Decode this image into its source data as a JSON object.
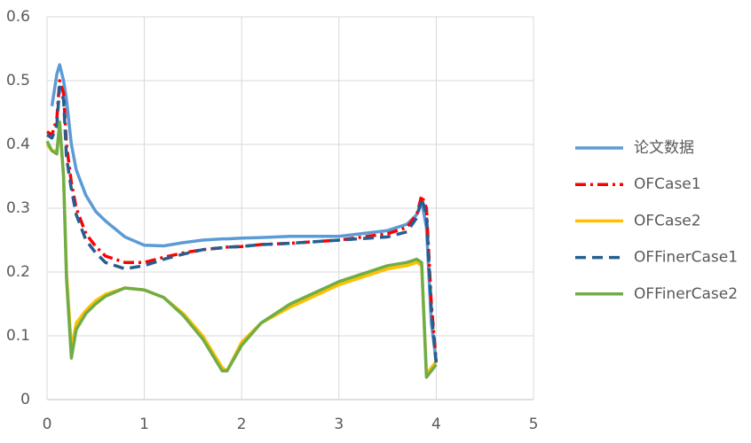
{
  "chart_data": {
    "type": "line",
    "x": [
      0,
      0.05,
      0.1,
      0.13,
      0.17,
      0.2,
      0.25,
      0.3,
      0.4,
      0.5,
      0.6,
      0.8,
      1.0,
      1.2,
      1.4,
      1.6,
      1.8,
      1.85,
      2.0,
      2.2,
      2.5,
      3.0,
      3.5,
      3.7,
      3.8,
      3.85,
      3.9,
      3.95,
      4.0
    ],
    "series": [
      {
        "name": "论文数据",
        "color": "#5b9bd5",
        "dash": "solid",
        "values": [
          null,
          0.46,
          0.51,
          0.525,
          0.5,
          0.47,
          0.4,
          0.36,
          0.32,
          0.295,
          0.28,
          0.255,
          0.242,
          0.241,
          0.246,
          0.25,
          0.252,
          0.252,
          0.253,
          0.254,
          0.256,
          0.256,
          0.265,
          0.275,
          0.29,
          0.31,
          0.27,
          0.12,
          0.06
        ]
      },
      {
        "name": "OFCase1",
        "color": "#ff0000",
        "dash": "dashdot",
        "values": [
          0.42,
          0.415,
          0.44,
          0.5,
          0.48,
          0.4,
          0.34,
          0.3,
          0.26,
          0.24,
          0.225,
          0.215,
          0.215,
          0.223,
          0.23,
          0.235,
          0.238,
          0.239,
          0.24,
          0.243,
          0.245,
          0.25,
          0.26,
          0.27,
          0.29,
          0.32,
          0.3,
          0.15,
          0.06
        ]
      },
      {
        "name": "OFCase2",
        "color": "#ffc000",
        "dash": "solid",
        "values": [
          0.4,
          0.39,
          0.39,
          0.43,
          0.35,
          0.2,
          0.08,
          0.12,
          0.14,
          0.155,
          0.165,
          0.175,
          0.172,
          0.16,
          0.135,
          0.1,
          0.05,
          0.045,
          0.09,
          0.12,
          0.145,
          0.18,
          0.205,
          0.21,
          0.215,
          0.21,
          0.04,
          0.05,
          0.06
        ]
      },
      {
        "name": "OFFinerCase1",
        "color": "#255e91",
        "dash": "dashed",
        "values": [
          0.415,
          0.41,
          0.43,
          0.49,
          0.47,
          0.38,
          0.33,
          0.29,
          0.25,
          0.23,
          0.215,
          0.205,
          0.21,
          0.22,
          0.228,
          0.235,
          0.238,
          0.239,
          0.24,
          0.243,
          0.245,
          0.25,
          0.255,
          0.263,
          0.285,
          0.315,
          0.29,
          0.14,
          0.055
        ]
      },
      {
        "name": "OFFinerCase2",
        "color": "#70ad47",
        "dash": "solid",
        "values": [
          0.405,
          0.39,
          0.385,
          0.435,
          0.35,
          0.19,
          0.065,
          0.11,
          0.135,
          0.15,
          0.162,
          0.175,
          0.172,
          0.16,
          0.132,
          0.095,
          0.045,
          0.045,
          0.085,
          0.12,
          0.15,
          0.185,
          0.21,
          0.215,
          0.22,
          0.215,
          0.035,
          0.045,
          0.055
        ]
      }
    ],
    "xlim": [
      0,
      5
    ],
    "xticks": [
      0,
      1,
      2,
      3,
      4,
      5
    ],
    "ylim": [
      0,
      0.6
    ],
    "yticks": [
      0,
      0.1,
      0.2,
      0.3,
      0.4,
      0.5,
      0.6
    ],
    "grid": true,
    "legend": "right"
  }
}
